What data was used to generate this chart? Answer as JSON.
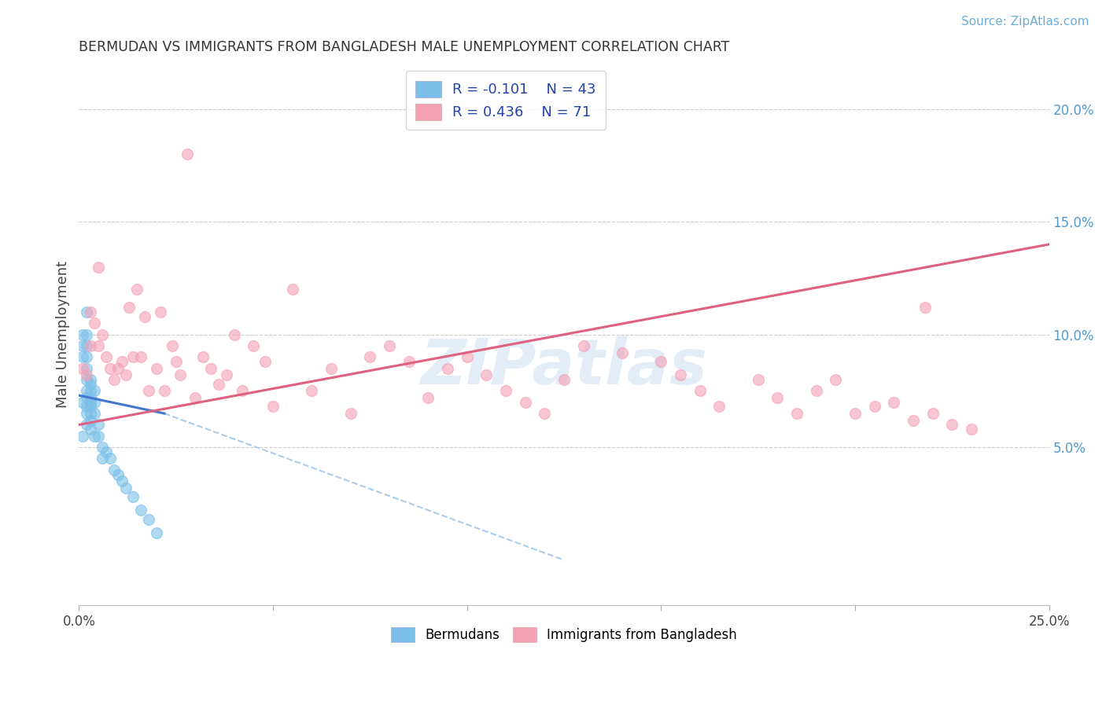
{
  "title": "BERMUDAN VS IMMIGRANTS FROM BANGLADESH MALE UNEMPLOYMENT CORRELATION CHART",
  "source": "Source: ZipAtlas.com",
  "ylabel": "Male Unemployment",
  "watermark": "ZIPatlas",
  "xlim": [
    0.0,
    0.25
  ],
  "ylim": [
    -0.02,
    0.22
  ],
  "color_blue": "#7bbfe8",
  "color_pink": "#f4a0b5",
  "color_trend_blue_solid": "#4477cc",
  "color_trend_blue_dash": "#aaccee",
  "color_trend_pink": "#e06080",
  "title_color": "#333333",
  "source_color": "#6aaed6",
  "axis_label_color": "#444444",
  "tick_color_right": "#5599cc",
  "tick_color_x": "#444444",
  "grid_color": "#cccccc",
  "background_color": "#ffffff",
  "bermuda_x": [
    0.001,
    0.001,
    0.001,
    0.001,
    0.001,
    0.002,
    0.002,
    0.002,
    0.002,
    0.002,
    0.002,
    0.002,
    0.002,
    0.002,
    0.002,
    0.002,
    0.003,
    0.003,
    0.003,
    0.003,
    0.003,
    0.003,
    0.003,
    0.003,
    0.003,
    0.004,
    0.004,
    0.004,
    0.004,
    0.005,
    0.005,
    0.006,
    0.006,
    0.007,
    0.008,
    0.009,
    0.01,
    0.011,
    0.012,
    0.014,
    0.016,
    0.018,
    0.02
  ],
  "bermuda_y": [
    0.1,
    0.095,
    0.09,
    0.07,
    0.055,
    0.11,
    0.1,
    0.095,
    0.09,
    0.085,
    0.08,
    0.075,
    0.072,
    0.068,
    0.065,
    0.06,
    0.08,
    0.078,
    0.075,
    0.072,
    0.07,
    0.068,
    0.065,
    0.062,
    0.058,
    0.075,
    0.07,
    0.065,
    0.055,
    0.06,
    0.055,
    0.05,
    0.045,
    0.048,
    0.045,
    0.04,
    0.038,
    0.035,
    0.032,
    0.028,
    0.022,
    0.018,
    0.012
  ],
  "bangladesh_x": [
    0.001,
    0.002,
    0.003,
    0.003,
    0.004,
    0.005,
    0.005,
    0.006,
    0.007,
    0.008,
    0.009,
    0.01,
    0.011,
    0.012,
    0.013,
    0.014,
    0.015,
    0.016,
    0.017,
    0.018,
    0.02,
    0.021,
    0.022,
    0.024,
    0.025,
    0.026,
    0.028,
    0.03,
    0.032,
    0.034,
    0.036,
    0.038,
    0.04,
    0.042,
    0.045,
    0.048,
    0.05,
    0.055,
    0.06,
    0.065,
    0.07,
    0.075,
    0.08,
    0.085,
    0.09,
    0.095,
    0.1,
    0.105,
    0.11,
    0.115,
    0.12,
    0.125,
    0.13,
    0.14,
    0.15,
    0.155,
    0.16,
    0.165,
    0.175,
    0.18,
    0.185,
    0.19,
    0.195,
    0.2,
    0.205,
    0.21,
    0.215,
    0.218,
    0.22,
    0.225,
    0.23
  ],
  "bangladesh_y": [
    0.085,
    0.082,
    0.11,
    0.095,
    0.105,
    0.13,
    0.095,
    0.1,
    0.09,
    0.085,
    0.08,
    0.085,
    0.088,
    0.082,
    0.112,
    0.09,
    0.12,
    0.09,
    0.108,
    0.075,
    0.085,
    0.11,
    0.075,
    0.095,
    0.088,
    0.082,
    0.18,
    0.072,
    0.09,
    0.085,
    0.078,
    0.082,
    0.1,
    0.075,
    0.095,
    0.088,
    0.068,
    0.12,
    0.075,
    0.085,
    0.065,
    0.09,
    0.095,
    0.088,
    0.072,
    0.085,
    0.09,
    0.082,
    0.075,
    0.07,
    0.065,
    0.08,
    0.095,
    0.092,
    0.088,
    0.082,
    0.075,
    0.068,
    0.08,
    0.072,
    0.065,
    0.075,
    0.08,
    0.065,
    0.068,
    0.07,
    0.062,
    0.112,
    0.065,
    0.06,
    0.058
  ],
  "trend_blue_x_solid_start": 0.0,
  "trend_blue_x_solid_end": 0.022,
  "trend_blue_x_dash_start": 0.022,
  "trend_blue_x_dash_end": 0.125,
  "trend_blue_y_at_0": 0.073,
  "trend_blue_y_at_022": 0.065,
  "trend_blue_y_at_125": 0.0,
  "trend_pink_x_start": 0.0,
  "trend_pink_x_end": 0.25,
  "trend_pink_y_start": 0.06,
  "trend_pink_y_end": 0.14
}
